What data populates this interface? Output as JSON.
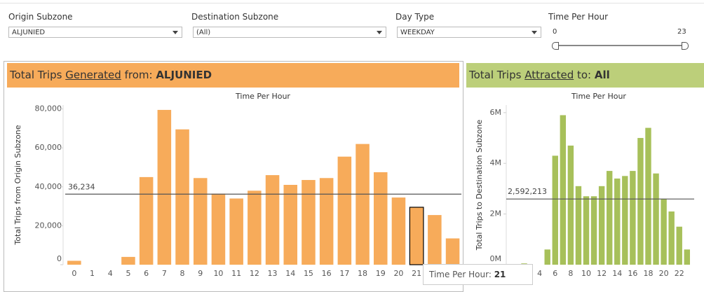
{
  "filters": [
    {
      "label": "Origin Subzone",
      "value": "ALJUNIED"
    },
    {
      "label": "Destination Subzone",
      "value": "(All)"
    },
    {
      "label": "Day Type",
      "value": "WEEKDAY"
    }
  ],
  "slider": {
    "label": "Time Per Hour",
    "min": 0,
    "max": 23
  },
  "chart_data": [
    {
      "type": "bar",
      "header": {
        "prefix": "Total Trips",
        "emphasis": "Generated",
        "suffix": "from:",
        "value": "ALJUNIED"
      },
      "title": "Time Per Hour",
      "y_label": "Total Trips from Origin Subzone",
      "categories": [
        "0",
        "1",
        "4",
        "5",
        "6",
        "7",
        "8",
        "9",
        "10",
        "11",
        "12",
        "13",
        "14",
        "15",
        "16",
        "17",
        "18",
        "19",
        "20",
        "21",
        "22",
        "23"
      ],
      "values": [
        2000,
        0,
        0,
        4000,
        45000,
        79500,
        69500,
        44500,
        36500,
        34000,
        38000,
        46000,
        41000,
        43500,
        44500,
        55500,
        62000,
        47500,
        34500,
        29500,
        25500,
        13500
      ],
      "color": "#f7ab5a",
      "ylim": [
        0,
        82000
      ],
      "yticks": [
        0,
        {
          "value": 20000,
          "label": "20,000"
        },
        {
          "value": 40000,
          "label": "40,000"
        },
        {
          "value": 60000,
          "label": "60,000"
        },
        {
          "value": 80000,
          "label": "80,000"
        }
      ],
      "reference": {
        "value": 36234,
        "label": "36,234"
      }
    },
    {
      "type": "bar",
      "header": {
        "prefix": "Total Trips",
        "emphasis": "Attracted",
        "suffix": "to:",
        "value": "All"
      },
      "title": "Time Per Hour",
      "y_label": "Total Trips to Destination Subzone",
      "categories": [
        null,
        null,
        "4",
        null,
        "6",
        null,
        "8",
        null,
        "10",
        null,
        "12",
        null,
        "14",
        null,
        "16",
        null,
        "18",
        null,
        "20",
        null,
        "22",
        null
      ],
      "values": [
        50000,
        0,
        0,
        600000,
        4300000,
        5900000,
        4700000,
        3100000,
        2700000,
        2700000,
        3100000,
        3700000,
        3400000,
        3500000,
        3700000,
        5000000,
        5400000,
        3600000,
        2600000,
        2100000,
        1500000,
        600000
      ],
      "color": "#a7c05a",
      "ylim": [
        0,
        6300000
      ],
      "yticks": [
        {
          "value": 0,
          "label": "0M"
        },
        {
          "value": 2000000,
          "label": "2M"
        },
        {
          "value": 4000000,
          "label": "4M"
        },
        {
          "value": 6000000,
          "label": "6M"
        }
      ],
      "reference": {
        "value": 2592213,
        "label": "2,592,213"
      }
    }
  ],
  "tooltip": {
    "label": "Time Per Hour:",
    "value": 21
  }
}
